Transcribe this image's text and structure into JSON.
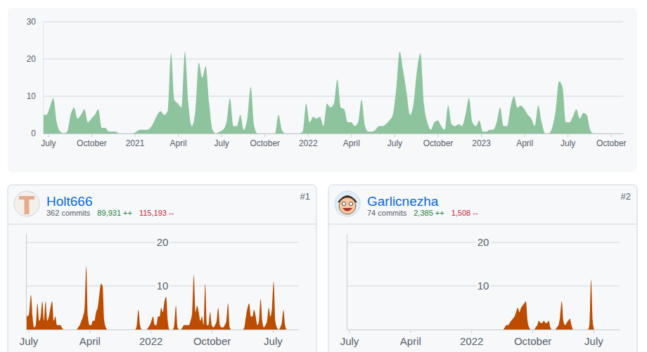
{
  "chart_data": [
    {
      "type": "area",
      "x": [
        2020.47,
        2020.49,
        2020.51,
        2020.53,
        2020.55,
        2020.57,
        2020.59,
        2020.61,
        2020.63,
        2020.65,
        2020.67,
        2020.69,
        2020.71,
        2020.73,
        2020.75,
        2020.77,
        2020.79,
        2020.81,
        2020.83,
        2020.85,
        2020.87,
        2020.89,
        2020.91,
        2020.93,
        2020.95,
        2020.97,
        2020.99,
        2021.01,
        2021.03,
        2021.05,
        2021.07,
        2021.09,
        2021.11,
        2021.13,
        2021.15,
        2021.17,
        2021.19,
        2021.21,
        2021.23,
        2021.25,
        2021.27,
        2021.29,
        2021.31,
        2021.33,
        2021.35,
        2021.37,
        2021.39,
        2021.41,
        2021.43,
        2021.45,
        2021.47,
        2021.49,
        2021.51,
        2021.53,
        2021.55,
        2021.57,
        2021.59,
        2021.61,
        2021.63,
        2021.65,
        2021.67,
        2021.69,
        2021.71,
        2021.73,
        2021.75,
        2021.77,
        2021.79,
        2021.81,
        2021.83,
        2021.85,
        2021.87,
        2021.89,
        2021.91,
        2021.93,
        2021.95,
        2021.97,
        2021.99,
        2022.01,
        2022.03,
        2022.05,
        2022.07,
        2022.09,
        2022.11,
        2022.13,
        2022.15,
        2022.17,
        2022.19,
        2022.21,
        2022.23,
        2022.25,
        2022.27,
        2022.29,
        2022.31,
        2022.33,
        2022.35,
        2022.37,
        2022.39,
        2022.41,
        2022.43,
        2022.45,
        2022.47,
        2022.49,
        2022.51,
        2022.53,
        2022.55,
        2022.57,
        2022.59,
        2022.61,
        2022.63,
        2022.65,
        2022.67,
        2022.69,
        2022.71,
        2022.73,
        2022.75,
        2022.77,
        2022.79,
        2022.81,
        2022.83,
        2022.85,
        2022.87,
        2022.89,
        2022.91,
        2022.93,
        2022.95,
        2022.97,
        2022.99,
        2023.01,
        2023.03,
        2023.05,
        2023.07,
        2023.09,
        2023.11,
        2023.13,
        2023.15,
        2023.17,
        2023.19,
        2023.21,
        2023.23,
        2023.25,
        2023.27,
        2023.29,
        2023.31,
        2023.33,
        2023.35,
        2023.37,
        2023.39,
        2023.41,
        2023.43,
        2023.45,
        2023.47,
        2023.49,
        2023.51,
        2023.53,
        2023.55,
        2023.57,
        2023.59,
        2023.61,
        2023.63,
        2023.65,
        2023.67,
        2023.69,
        2023.71,
        2023.73
      ],
      "values": [
        5,
        5,
        7,
        9.5,
        3,
        0.5,
        0,
        0.5,
        5,
        7,
        4,
        5,
        6.5,
        3,
        4,
        5,
        6.5,
        1.5,
        1.5,
        0.5,
        0.5,
        0.5,
        0,
        0,
        0,
        0,
        0,
        0.5,
        1,
        1,
        1,
        1.5,
        3,
        5,
        6,
        5,
        6,
        21.5,
        9,
        8,
        7,
        22,
        8,
        2,
        6,
        19,
        15,
        18,
        8,
        1,
        0,
        0.5,
        1,
        3,
        9.5,
        2,
        2,
        5,
        1,
        4,
        12.5,
        2,
        0,
        0,
        0,
        0,
        0,
        0,
        5,
        1,
        0,
        0,
        0,
        0,
        0,
        0.5,
        8,
        3,
        4.5,
        4,
        4.5,
        2,
        8,
        7,
        8,
        14.5,
        7,
        6.5,
        3,
        3,
        2,
        3,
        9,
        2,
        0.5,
        0.5,
        1,
        2,
        2,
        2.5,
        3.5,
        5,
        12,
        22,
        17,
        11,
        5,
        8,
        17,
        21.5,
        8,
        3,
        1,
        3,
        3.5,
        2,
        1,
        7.5,
        2.5,
        2,
        2.5,
        2,
        5,
        9.5,
        3,
        2,
        3.5,
        0.5,
        0.5,
        1,
        1,
        3,
        7,
        2,
        2,
        7,
        10,
        7,
        7.5,
        6.5,
        5,
        4,
        2,
        7.5,
        3,
        0,
        0,
        1.5,
        6,
        14,
        12.5,
        3,
        3,
        4.5,
        6.5,
        4,
        5.5,
        5,
        1,
        0,
        0,
        0,
        0,
        0
      ],
      "color": "#8dc49e",
      "xlim": [
        2020.47,
        2023.82
      ],
      "xticks": [
        {
          "value": 2020.5,
          "label": "July"
        },
        {
          "value": 2020.75,
          "label": "October"
        },
        2021,
        {
          "value": 2021.25,
          "label": "April"
        },
        {
          "value": 2021.5,
          "label": "July"
        },
        {
          "value": 2021.75,
          "label": "October"
        },
        2022,
        {
          "value": 2022.25,
          "label": "April"
        },
        {
          "value": 2022.5,
          "label": "July"
        },
        {
          "value": 2022.75,
          "label": "October"
        },
        2023,
        {
          "value": 2023.25,
          "label": "April"
        },
        {
          "value": 2023.5,
          "label": "July"
        },
        {
          "value": 2023.75,
          "label": "October"
        }
      ],
      "ylim": [
        0,
        30
      ],
      "yticks": [
        0,
        10,
        20,
        30
      ],
      "grid": true
    },
    {
      "type": "area",
      "title": "Holt666",
      "annotations": [
        "#1",
        "362 commits",
        "89,931 ++",
        "115,193 --"
      ],
      "x": [
        2020.47,
        2020.49,
        2020.51,
        2020.53,
        2020.55,
        2020.57,
        2020.59,
        2020.61,
        2020.63,
        2020.65,
        2020.67,
        2020.69,
        2020.71,
        2020.73,
        2020.75,
        2020.77,
        2020.79,
        2020.81,
        2020.83,
        2020.85,
        2020.87,
        2020.89,
        2020.91,
        2020.93,
        2020.95,
        2020.97,
        2020.99,
        2021.01,
        2021.03,
        2021.05,
        2021.07,
        2021.09,
        2021.11,
        2021.13,
        2021.15,
        2021.17,
        2021.19,
        2021.21,
        2021.23,
        2021.25,
        2021.27,
        2021.29,
        2021.31,
        2021.33,
        2021.35,
        2021.37,
        2021.39,
        2021.41,
        2021.43,
        2021.45,
        2021.47,
        2021.49,
        2021.51,
        2021.53,
        2021.55,
        2021.57,
        2021.59,
        2021.61,
        2021.63,
        2021.65,
        2021.67,
        2021.69,
        2021.71,
        2021.73,
        2021.75,
        2021.77,
        2021.79,
        2021.81,
        2021.83,
        2021.85,
        2021.87,
        2021.89,
        2021.91,
        2021.93,
        2021.95,
        2021.97,
        2021.99,
        2022.01,
        2022.03,
        2022.05,
        2022.07,
        2022.09,
        2022.11,
        2022.13,
        2022.15,
        2022.17,
        2022.19,
        2022.21,
        2022.23,
        2022.25,
        2022.27,
        2022.29,
        2022.31,
        2022.33,
        2022.35,
        2022.37,
        2022.39,
        2022.41,
        2022.43,
        2022.45,
        2022.47,
        2022.49,
        2022.51,
        2022.53,
        2022.55,
        2022.57,
        2022.59,
        2022.61,
        2022.63,
        2022.65,
        2022.67,
        2022.69,
        2022.71,
        2022.73,
        2022.75,
        2022.77,
        2022.79,
        2022.81,
        2022.83,
        2022.85,
        2022.87,
        2022.89,
        2022.91,
        2022.93,
        2022.95,
        2022.97,
        2022.99,
        2023.01,
        2023.03,
        2023.05,
        2023.07,
        2023.09,
        2023.11,
        2023.13,
        2023.15,
        2023.17,
        2023.19,
        2023.21,
        2023.23,
        2023.25,
        2023.27,
        2023.29,
        2023.31,
        2023.33,
        2023.35,
        2023.37,
        2023.39,
        2023.41,
        2023.43,
        2023.45,
        2023.47,
        2023.49,
        2023.51,
        2023.53,
        2023.55,
        2023.57,
        2023.59,
        2023.61,
        2023.63,
        2023.65,
        2023.67,
        2023.69,
        2023.71,
        2023.73
      ],
      "values": [
        4,
        3,
        4,
        8,
        3,
        0.5,
        1,
        6,
        2,
        3,
        6.5,
        2,
        6.5,
        2,
        3,
        5,
        6.5,
        2,
        3,
        1,
        1,
        1,
        0.5,
        0,
        0,
        0,
        0,
        0,
        0,
        0,
        0,
        0,
        0.5,
        1,
        2,
        3,
        5,
        14.5,
        3,
        1,
        1,
        2,
        2,
        4,
        5,
        8,
        10.5,
        10,
        2,
        0.5,
        0,
        0,
        0,
        0,
        0,
        0,
        0,
        0,
        0,
        0,
        0,
        0,
        0,
        0,
        0,
        0,
        0,
        0,
        1,
        4.5,
        1,
        0,
        0,
        0,
        0,
        0.5,
        1,
        2,
        3,
        1,
        1,
        3,
        3,
        5,
        4,
        6.5,
        7.5,
        2,
        0,
        0,
        0,
        1,
        5.5,
        0.5,
        0,
        0,
        0.5,
        1,
        1,
        1,
        1,
        2,
        4,
        12.5,
        4,
        5.5,
        4,
        2,
        3,
        1,
        10.5,
        1,
        1,
        4,
        1,
        0.5,
        1,
        2,
        5,
        1,
        0.5,
        0.5,
        1,
        2,
        6,
        0.5,
        0,
        0,
        0,
        0,
        0,
        0,
        0,
        0,
        0.5,
        3,
        5,
        6,
        3,
        3,
        4.5,
        3,
        1,
        2,
        7,
        2,
        0.5,
        1,
        2,
        5,
        3,
        5,
        11,
        2,
        0.5,
        0,
        0.5,
        1.5,
        4.5,
        1,
        0,
        0,
        0,
        0
      ],
      "color": "#bc4c00",
      "xlim": [
        2020.47,
        2023.82
      ],
      "xticks": [
        {
          "value": 2020.5,
          "label": "July"
        },
        {
          "value": 2021.25,
          "label": "April"
        },
        2022,
        {
          "value": 2022.75,
          "label": "October"
        },
        {
          "value": 2023.5,
          "label": "July"
        }
      ],
      "ylim": [
        0,
        22
      ],
      "yticks": [
        10,
        20
      ],
      "grid": true
    },
    {
      "type": "area",
      "title": "Garlicnezha",
      "annotations": [
        "#2",
        "74 commits",
        "2,385 ++",
        "1,508 --"
      ],
      "x": [
        2020.47,
        2020.49,
        2020.51,
        2020.53,
        2020.55,
        2020.57,
        2020.59,
        2020.61,
        2020.63,
        2020.65,
        2020.67,
        2020.69,
        2020.71,
        2020.73,
        2020.75,
        2020.77,
        2020.79,
        2020.81,
        2020.83,
        2020.85,
        2020.87,
        2020.89,
        2020.91,
        2020.93,
        2020.95,
        2020.97,
        2020.99,
        2021.01,
        2021.03,
        2021.05,
        2021.07,
        2021.09,
        2021.11,
        2021.13,
        2021.15,
        2021.17,
        2021.19,
        2021.21,
        2021.23,
        2021.25,
        2021.27,
        2021.29,
        2021.31,
        2021.33,
        2021.35,
        2021.37,
        2021.39,
        2021.41,
        2021.43,
        2021.45,
        2021.47,
        2021.49,
        2021.51,
        2021.53,
        2021.55,
        2021.57,
        2021.59,
        2021.61,
        2021.63,
        2021.65,
        2021.67,
        2021.69,
        2021.71,
        2021.73,
        2021.75,
        2021.77,
        2021.79,
        2021.81,
        2021.83,
        2021.85,
        2021.87,
        2021.89,
        2021.91,
        2021.93,
        2021.95,
        2021.97,
        2021.99,
        2022.01,
        2022.03,
        2022.05,
        2022.07,
        2022.09,
        2022.11,
        2022.13,
        2022.15,
        2022.17,
        2022.19,
        2022.21,
        2022.23,
        2022.25,
        2022.27,
        2022.29,
        2022.31,
        2022.33,
        2022.35,
        2022.37,
        2022.39,
        2022.41,
        2022.43,
        2022.45,
        2022.47,
        2022.49,
        2022.51,
        2022.53,
        2022.55,
        2022.57,
        2022.59,
        2022.61,
        2022.63,
        2022.65,
        2022.67,
        2022.69,
        2022.71,
        2022.73,
        2022.75,
        2022.77,
        2022.79,
        2022.81,
        2022.83,
        2022.85,
        2022.87,
        2022.89,
        2022.91,
        2022.93,
        2022.95,
        2022.97,
        2022.99,
        2023.01,
        2023.03,
        2023.05,
        2023.07,
        2023.09,
        2023.11,
        2023.13,
        2023.15,
        2023.17,
        2023.19,
        2023.21,
        2023.23,
        2023.25,
        2023.27,
        2023.29,
        2023.31,
        2023.33,
        2023.35,
        2023.37,
        2023.39,
        2023.41,
        2023.43,
        2023.45,
        2023.47,
        2023.49,
        2023.51,
        2023.53,
        2023.55,
        2023.57,
        2023.59,
        2023.61,
        2023.63,
        2023.65,
        2023.67,
        2023.69,
        2023.71,
        2023.73
      ],
      "values": [
        0,
        0,
        0,
        0,
        0,
        0,
        0,
        0,
        0,
        0,
        0,
        0,
        0,
        0,
        0,
        0,
        0,
        0,
        0,
        0,
        0,
        0,
        0,
        0,
        0,
        0,
        0,
        0,
        0,
        0,
        0,
        0,
        0,
        0,
        0,
        0,
        0,
        0,
        0,
        0,
        0,
        0,
        0,
        0,
        0,
        0,
        0,
        0,
        0,
        0,
        0,
        0,
        0,
        0,
        0,
        0,
        0,
        0,
        0,
        0,
        0,
        0,
        0,
        0,
        0,
        0,
        0,
        0,
        0,
        0,
        0,
        0,
        0,
        0,
        0,
        0,
        0,
        0,
        0,
        0,
        0,
        0,
        0,
        0,
        0,
        0,
        0,
        0,
        0,
        0,
        0,
        0,
        0,
        0,
        0,
        0,
        0,
        0.5,
        1,
        1,
        1.5,
        2,
        2.5,
        3,
        4,
        5,
        4,
        5,
        5.5,
        6,
        6.5,
        2,
        0.5,
        0,
        0,
        0,
        0.5,
        1,
        2,
        1.5,
        1.5,
        2,
        1.5,
        1.5,
        2,
        0.5,
        0,
        0,
        0,
        0.5,
        1,
        3,
        6.5,
        2,
        1,
        1.5,
        2,
        2.5,
        1,
        0,
        0,
        0,
        0,
        0,
        0,
        0,
        0,
        0,
        0,
        1,
        11.5,
        2,
        0,
        0,
        0,
        0,
        0,
        0,
        0,
        0,
        0,
        0,
        0,
        0
      ],
      "color": "#bc4c00",
      "xlim": [
        2020.47,
        2023.82
      ],
      "xticks": [
        {
          "value": 2020.5,
          "label": "July"
        },
        {
          "value": 2021.25,
          "label": "April"
        },
        2022,
        {
          "value": 2022.75,
          "label": "October"
        },
        {
          "value": 2023.5,
          "label": "July"
        }
      ],
      "ylim": [
        0,
        22
      ],
      "yticks": [
        10,
        20
      ],
      "grid": true
    }
  ]
}
